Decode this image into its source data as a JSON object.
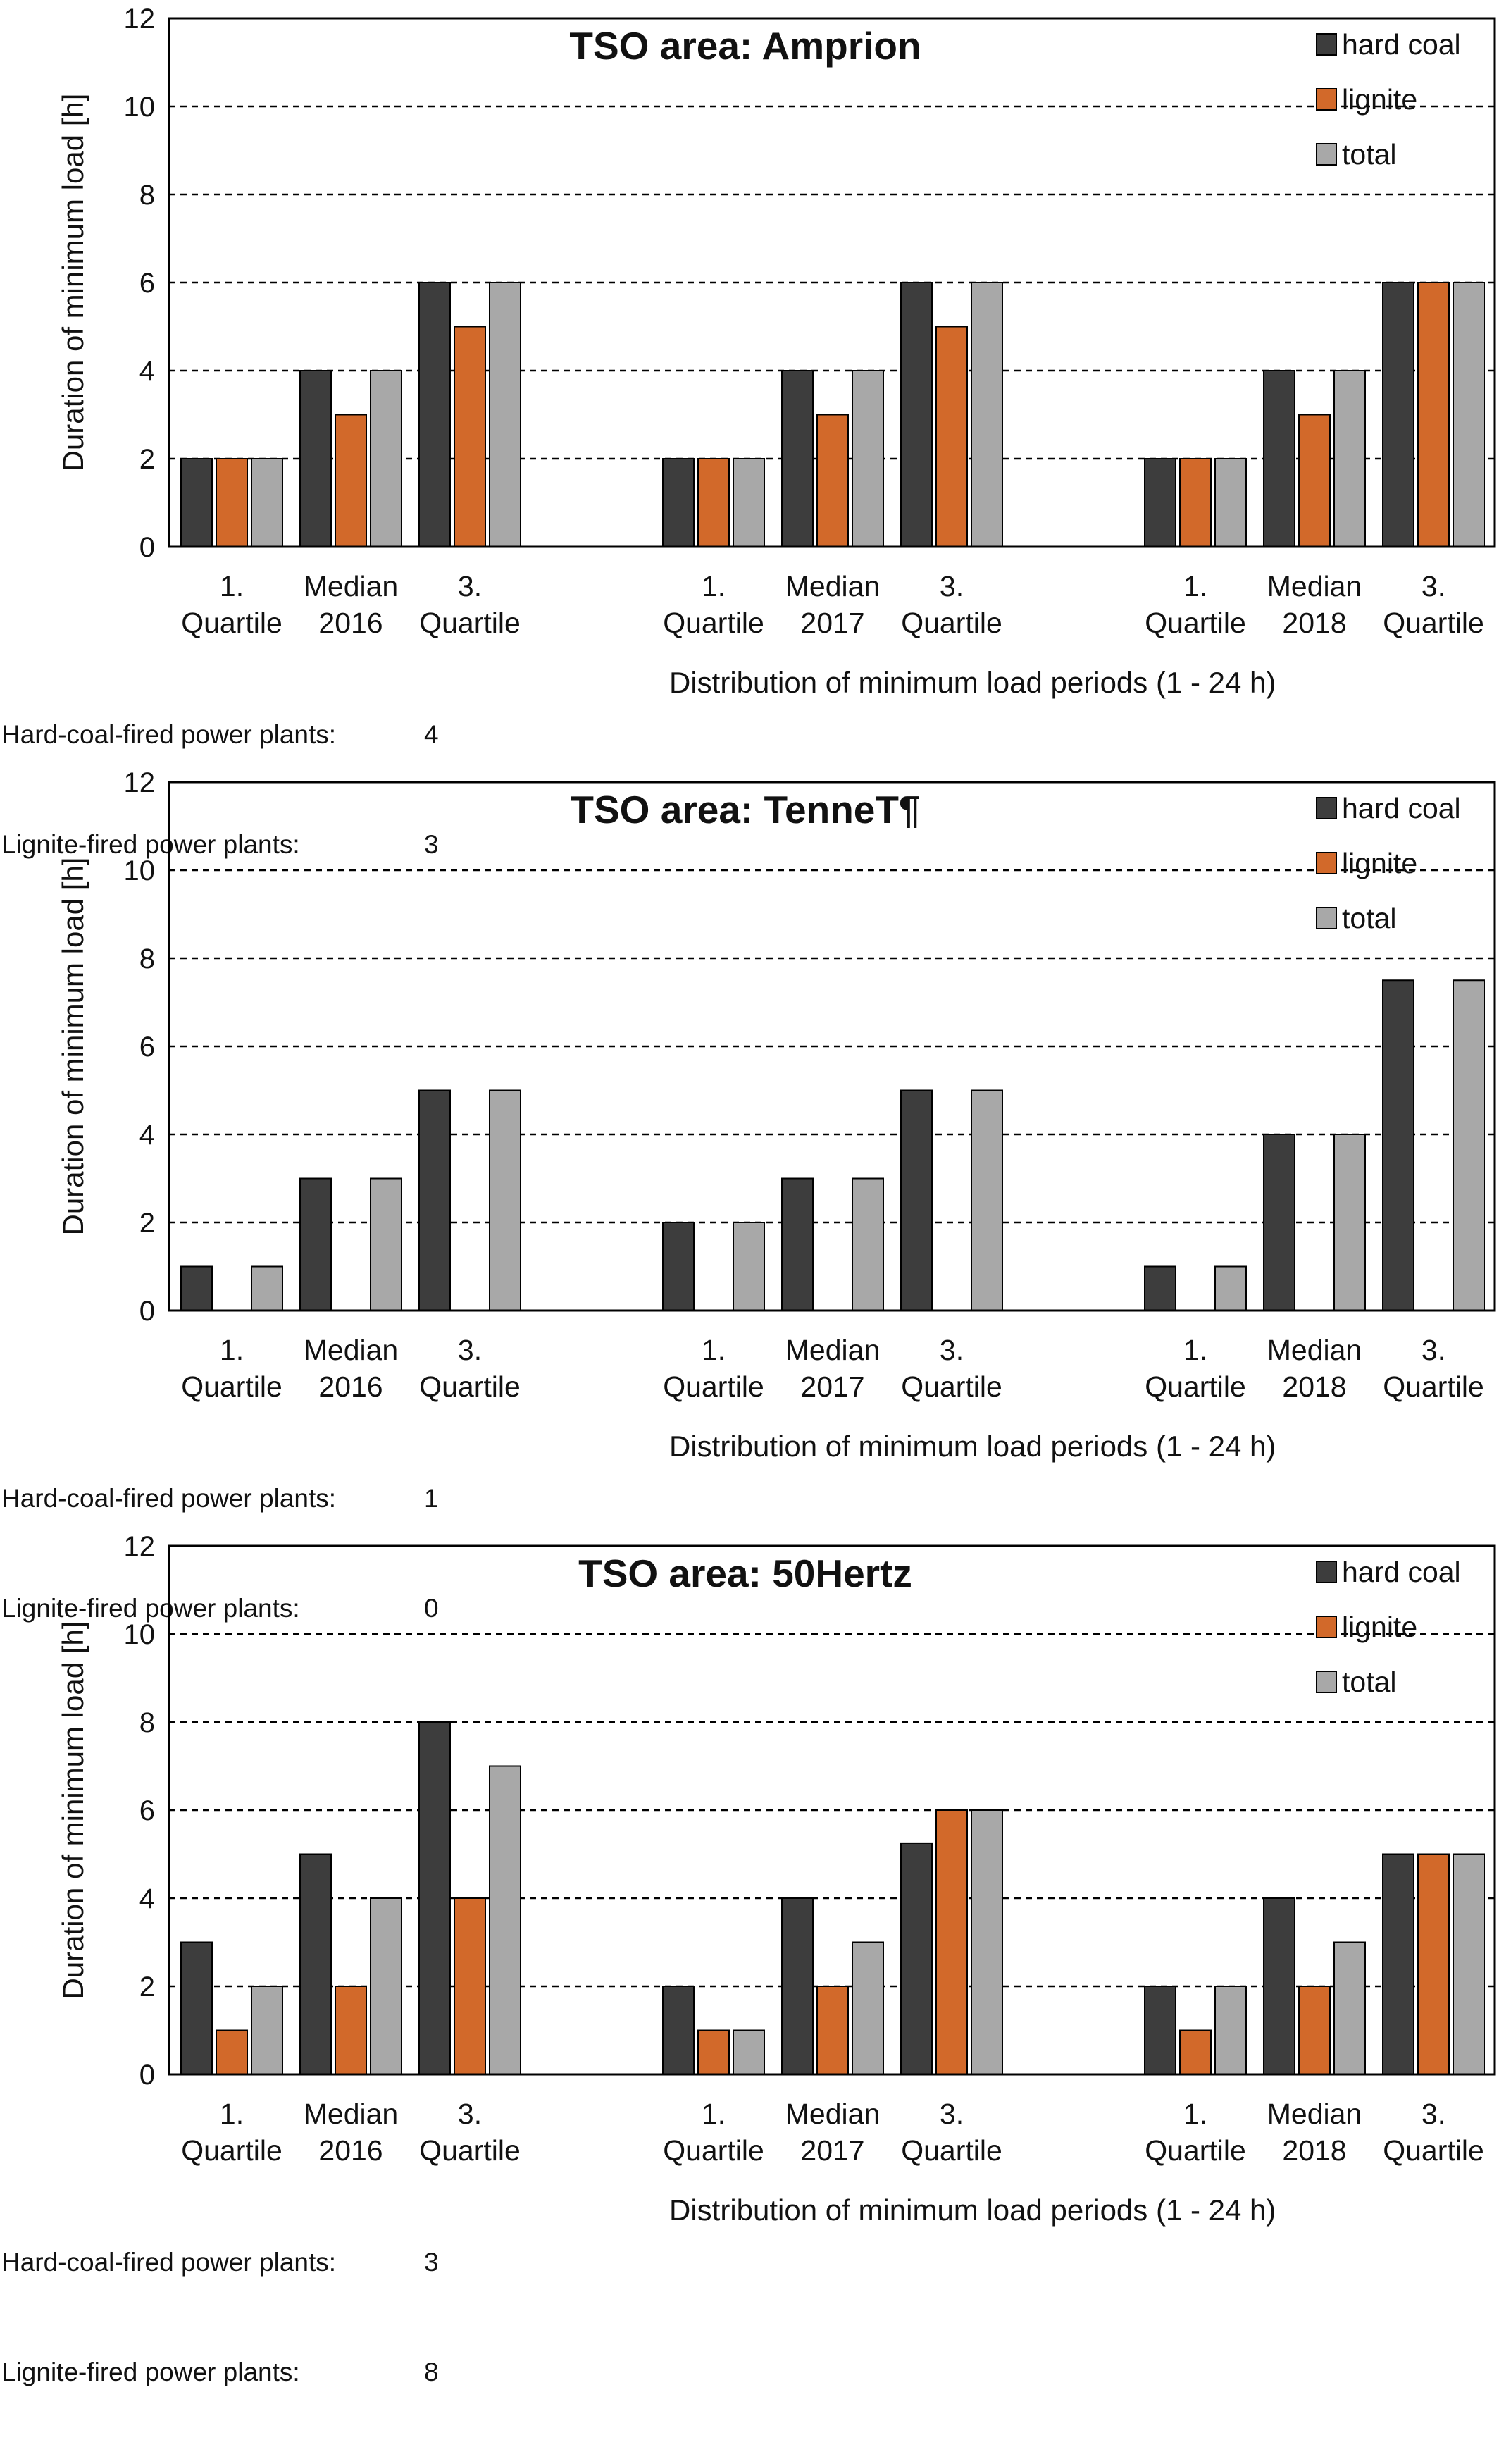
{
  "colors": {
    "hard_coal": "#3d3d3d",
    "lignite": "#d2692a",
    "total": "#a8a8a8",
    "grid": "#000000"
  },
  "chart_data": [
    {
      "type": "bar",
      "title": "TSO area: Amprion",
      "ylabel": "Duration of minimum load [h]",
      "xlabel": "Distribution of minimum load periods (1 - 24 h)",
      "ylim": [
        0,
        12
      ],
      "yticks": [
        "0",
        "2",
        "4",
        "6",
        "8",
        "10",
        "12"
      ],
      "grid": "dashed horizontal",
      "legend_position": "top-right",
      "groups": [
        {
          "year": "2016",
          "categories": [
            [
              "1.",
              "Quartile"
            ],
            [
              "Median",
              "2016"
            ],
            [
              "3.",
              "Quartile"
            ]
          ]
        },
        {
          "year": "2017",
          "categories": [
            [
              "1.",
              "Quartile"
            ],
            [
              "Median",
              "2017"
            ],
            [
              "3.",
              "Quartile"
            ]
          ]
        },
        {
          "year": "2018",
          "categories": [
            [
              "1.",
              "Quartile"
            ],
            [
              "Median",
              "2018"
            ],
            [
              "3.",
              "Quartile"
            ]
          ]
        }
      ],
      "series": [
        {
          "name": "hard coal",
          "values": [
            2,
            4,
            6,
            2,
            4,
            6,
            2,
            4,
            6
          ]
        },
        {
          "name": "lignite",
          "values": [
            2,
            3,
            5,
            2,
            3,
            5,
            2,
            3,
            6
          ]
        },
        {
          "name": "total",
          "values": [
            2,
            4,
            6,
            2,
            4,
            6,
            2,
            4,
            6
          ]
        }
      ],
      "plants": [
        {
          "label": "Hard-coal-fired power plants:",
          "value": "4"
        },
        {
          "label": "Lignite-fired power plants:",
          "value": "3"
        }
      ]
    },
    {
      "type": "bar",
      "title": "TSO area: TenneT¶",
      "ylabel": "Duration of minimum load [h]",
      "xlabel": "Distribution of minimum load periods (1 - 24 h)",
      "ylim": [
        0,
        12
      ],
      "yticks": [
        "0",
        "2",
        "4",
        "6",
        "8",
        "10",
        "12"
      ],
      "grid": "dashed horizontal",
      "legend_position": "top-right",
      "groups": [
        {
          "year": "2016",
          "categories": [
            [
              "1.",
              "Quartile"
            ],
            [
              "Median",
              "2016"
            ],
            [
              "3.",
              "Quartile"
            ]
          ]
        },
        {
          "year": "2017",
          "categories": [
            [
              "1.",
              "Quartile"
            ],
            [
              "Median",
              "2017"
            ],
            [
              "3.",
              "Quartile"
            ]
          ]
        },
        {
          "year": "2018",
          "categories": [
            [
              "1.",
              "Quartile"
            ],
            [
              "Median",
              "2018"
            ],
            [
              "3.",
              "Quartile"
            ]
          ]
        }
      ],
      "series": [
        {
          "name": "hard coal",
          "values": [
            1,
            3,
            5,
            2,
            3,
            5,
            1,
            4,
            7.5
          ]
        },
        {
          "name": "lignite",
          "values": [
            0,
            0,
            0,
            0,
            0,
            0,
            0,
            0,
            0
          ]
        },
        {
          "name": "total",
          "values": [
            1,
            3,
            5,
            2,
            3,
            5,
            1,
            4,
            7.5
          ]
        }
      ],
      "plants": [
        {
          "label": "Hard-coal-fired power plants:",
          "value": "1"
        },
        {
          "label": "Lignite-fired power plants:",
          "value": "0"
        }
      ]
    },
    {
      "type": "bar",
      "title": "TSO area: 50Hertz",
      "ylabel": "Duration of minimum load [h]",
      "xlabel": "Distribution of minimum load periods (1 - 24 h)",
      "ylim": [
        0,
        12
      ],
      "yticks": [
        "0",
        "2",
        "4",
        "6",
        "8",
        "10",
        "12"
      ],
      "grid": "dashed horizontal",
      "legend_position": "top-right",
      "groups": [
        {
          "year": "2016",
          "categories": [
            [
              "1.",
              "Quartile"
            ],
            [
              "Median",
              "2016"
            ],
            [
              "3.",
              "Quartile"
            ]
          ]
        },
        {
          "year": "2017",
          "categories": [
            [
              "1.",
              "Quartile"
            ],
            [
              "Median",
              "2017"
            ],
            [
              "3.",
              "Quartile"
            ]
          ]
        },
        {
          "year": "2018",
          "categories": [
            [
              "1.",
              "Quartile"
            ],
            [
              "Median",
              "2018"
            ],
            [
              "3.",
              "Quartile"
            ]
          ]
        }
      ],
      "series": [
        {
          "name": "hard coal",
          "values": [
            3,
            5,
            8,
            2,
            4,
            5.25,
            2,
            4,
            5
          ]
        },
        {
          "name": "lignite",
          "values": [
            1,
            2,
            4,
            1,
            2,
            6,
            1,
            2,
            5
          ]
        },
        {
          "name": "total",
          "values": [
            2,
            4,
            7,
            1,
            3,
            6,
            2,
            3,
            5
          ]
        }
      ],
      "plants": [
        {
          "label": "Hard-coal-fired power plants:",
          "value": "3"
        },
        {
          "label": "Lignite-fired power plants:",
          "value": "8"
        }
      ]
    }
  ]
}
